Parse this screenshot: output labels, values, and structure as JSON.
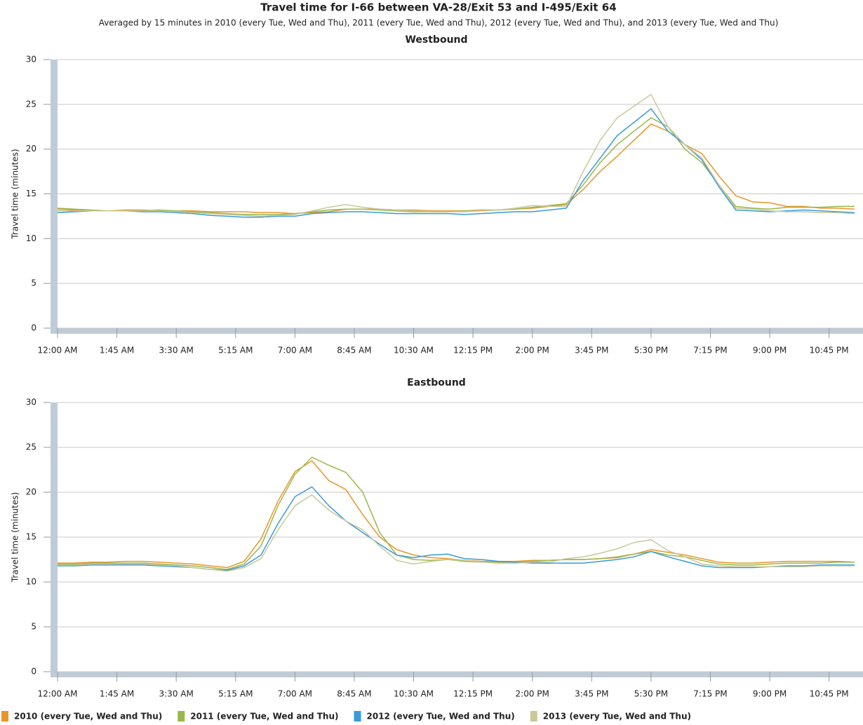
{
  "title": "Travel time for I-66 between VA-28/Exit 53 and I-495/Exit 64",
  "subtitle": "Averaged by 15 minutes in 2010 (every Tue, Wed and Thu), 2011 (every Tue, Wed and Thu), 2012 (every Tue, Wed and Thu), and 2013 (every Tue, Wed and Thu)",
  "chart_data": [
    {
      "type": "line",
      "title": "Westbound",
      "y_label": "Travel time (minutes)",
      "x": [
        0,
        0.5,
        1,
        1.5,
        2,
        2.5,
        3,
        3.5,
        4,
        4.5,
        5,
        5.5,
        6,
        6.5,
        7,
        7.5,
        8,
        8.5,
        9,
        9.5,
        10,
        10.5,
        11,
        11.5,
        12,
        12.5,
        13,
        13.5,
        14,
        14.5,
        15,
        15.5,
        16,
        16.5,
        17,
        17.5,
        18,
        18.5,
        19,
        19.5,
        20,
        20.5,
        21,
        21.5,
        22,
        22.5,
        23,
        23.5
      ],
      "xlim": [
        0,
        23.75
      ],
      "xticks": [
        {
          "value": 0,
          "label": "12:00 AM"
        },
        {
          "value": 1.75,
          "label": "1:45 AM"
        },
        {
          "value": 3.5,
          "label": "3:30 AM"
        },
        {
          "value": 5.25,
          "label": "5:15 AM"
        },
        {
          "value": 7,
          "label": "7:00 AM"
        },
        {
          "value": 8.75,
          "label": "8:45 AM"
        },
        {
          "value": 10.5,
          "label": "10:30 AM"
        },
        {
          "value": 12.25,
          "label": "12:15 PM"
        },
        {
          "value": 14,
          "label": "2:00 PM"
        },
        {
          "value": 15.75,
          "label": "3:45 PM"
        },
        {
          "value": 17.5,
          "label": "5:30 PM"
        },
        {
          "value": 19.25,
          "label": "7:15 PM"
        },
        {
          "value": 21,
          "label": "9:00 PM"
        },
        {
          "value": 22.75,
          "label": "10:45 PM"
        }
      ],
      "ylim": [
        0,
        30
      ],
      "yticks": [
        0,
        5,
        10,
        15,
        20,
        25,
        30
      ],
      "grid": true,
      "series": [
        {
          "name": "2010 (every Tue, Wed and Thu)",
          "color": "#e8962a",
          "values": [
            13.3,
            13.2,
            13.1,
            13.1,
            13.2,
            13.2,
            13.1,
            13.1,
            13.1,
            13.0,
            13.0,
            13.0,
            12.9,
            12.9,
            12.8,
            12.9,
            13.0,
            13.3,
            13.3,
            13.3,
            13.2,
            13.2,
            13.1,
            13.1,
            13.1,
            13.2,
            13.2,
            13.3,
            13.4,
            13.6,
            13.8,
            15.5,
            17.5,
            19.2,
            21.0,
            22.8,
            22.0,
            20.5,
            19.5,
            17.0,
            14.8,
            14.1,
            14.0,
            13.6,
            13.6,
            13.4,
            13.4,
            13.3
          ]
        },
        {
          "name": "2011 (every Tue, Wed and Thu)",
          "color": "#9ab84a",
          "values": [
            13.4,
            13.3,
            13.2,
            13.1,
            13.1,
            13.1,
            13.2,
            13.1,
            13.0,
            12.9,
            12.8,
            12.7,
            12.7,
            12.7,
            12.8,
            13.0,
            13.2,
            13.3,
            13.3,
            13.2,
            13.1,
            13.0,
            13.0,
            13.0,
            13.1,
            13.1,
            13.2,
            13.3,
            13.5,
            13.7,
            13.9,
            16.0,
            18.5,
            20.5,
            22.0,
            23.5,
            22.5,
            20.0,
            18.5,
            16.0,
            13.6,
            13.4,
            13.3,
            13.5,
            13.5,
            13.5,
            13.6,
            13.6
          ]
        },
        {
          "name": "2012 (every Tue, Wed and Thu)",
          "color": "#3a9ad9",
          "values": [
            12.9,
            13.0,
            13.1,
            13.1,
            13.1,
            13.0,
            13.0,
            12.9,
            12.8,
            12.6,
            12.5,
            12.4,
            12.4,
            12.5,
            12.5,
            12.8,
            12.9,
            13.0,
            13.0,
            12.9,
            12.8,
            12.8,
            12.8,
            12.8,
            12.7,
            12.8,
            12.9,
            13.0,
            13.0,
            13.2,
            13.4,
            16.5,
            19.0,
            21.5,
            23.0,
            24.5,
            22.0,
            20.5,
            18.8,
            15.8,
            13.2,
            13.1,
            13.0,
            13.1,
            13.2,
            13.1,
            13.0,
            12.9
          ]
        },
        {
          "name": "2013 (every Tue, Wed and Thu)",
          "color": "#c8c89a",
          "values": [
            13.1,
            13.1,
            13.1,
            13.1,
            13.1,
            13.1,
            13.1,
            13.0,
            12.9,
            12.8,
            12.7,
            12.6,
            12.5,
            12.6,
            12.7,
            13.1,
            13.5,
            13.8,
            13.5,
            13.3,
            13.2,
            13.1,
            13.0,
            13.0,
            13.0,
            13.1,
            13.2,
            13.4,
            13.7,
            13.6,
            13.6,
            17.5,
            21.0,
            23.5,
            24.8,
            26.1,
            22.5,
            20.5,
            19.0,
            16.0,
            13.4,
            13.3,
            13.1,
            13.0,
            13.0,
            12.9,
            12.9,
            12.8
          ]
        }
      ]
    },
    {
      "type": "line",
      "title": "Eastbound",
      "y_label": "Travel time (minutes)",
      "x": [
        0,
        0.5,
        1,
        1.5,
        2,
        2.5,
        3,
        3.5,
        4,
        4.5,
        5,
        5.5,
        6,
        6.5,
        7,
        7.5,
        8,
        8.5,
        9,
        9.5,
        10,
        10.5,
        11,
        11.5,
        12,
        12.5,
        13,
        13.5,
        14,
        14.5,
        15,
        15.5,
        16,
        16.5,
        17,
        17.5,
        18,
        18.5,
        19,
        19.5,
        20,
        20.5,
        21,
        21.5,
        22,
        22.5,
        23,
        23.5
      ],
      "xlim": [
        0,
        23.75
      ],
      "xticks": [
        {
          "value": 0,
          "label": "12:00 AM"
        },
        {
          "value": 1.75,
          "label": "1:45 AM"
        },
        {
          "value": 3.5,
          "label": "3:30 AM"
        },
        {
          "value": 5.25,
          "label": "5:15 AM"
        },
        {
          "value": 7,
          "label": "7:00 AM"
        },
        {
          "value": 8.75,
          "label": "8:45 AM"
        },
        {
          "value": 10.5,
          "label": "10:30 AM"
        },
        {
          "value": 12.25,
          "label": "12:15 PM"
        },
        {
          "value": 14,
          "label": "2:00 PM"
        },
        {
          "value": 15.75,
          "label": "3:45 PM"
        },
        {
          "value": 17.5,
          "label": "5:30 PM"
        },
        {
          "value": 19.25,
          "label": "7:15 PM"
        },
        {
          "value": 21,
          "label": "9:00 PM"
        },
        {
          "value": 22.75,
          "label": "10:45 PM"
        }
      ],
      "ylim": [
        0,
        30
      ],
      "yticks": [
        0,
        5,
        10,
        15,
        20,
        25,
        30
      ],
      "grid": true,
      "series": [
        {
          "color": "#e8962a",
          "values": [
            12.1,
            12.1,
            12.2,
            12.2,
            12.3,
            12.3,
            12.2,
            12.1,
            12.0,
            11.8,
            11.6,
            12.3,
            14.8,
            19.0,
            22.3,
            23.5,
            21.3,
            20.3,
            17.5,
            15.0,
            13.6,
            13.0,
            12.7,
            12.6,
            12.4,
            12.3,
            12.3,
            12.3,
            12.4,
            12.4,
            12.5,
            12.5,
            12.6,
            12.7,
            13.1,
            13.6,
            13.3,
            13.0,
            12.6,
            12.2,
            12.1,
            12.1,
            12.2,
            12.3,
            12.3,
            12.3,
            12.3,
            12.2
          ]
        },
        {
          "color": "#9ab84a",
          "values": [
            12.0,
            12.0,
            12.1,
            12.1,
            12.1,
            12.1,
            12.0,
            11.9,
            11.8,
            11.6,
            11.4,
            12.0,
            14.0,
            18.5,
            22.0,
            23.9,
            23.0,
            22.2,
            20.0,
            15.5,
            13.0,
            12.5,
            12.4,
            12.5,
            12.3,
            12.2,
            12.2,
            12.2,
            12.3,
            12.4,
            12.5,
            12.5,
            12.6,
            12.8,
            13.1,
            13.4,
            13.0,
            12.8,
            12.4,
            12.0,
            11.9,
            11.9,
            12.0,
            12.1,
            12.1,
            12.1,
            12.2,
            12.2
          ]
        },
        {
          "color": "#3a9ad9",
          "values": [
            11.8,
            11.8,
            11.9,
            11.9,
            11.9,
            11.9,
            11.8,
            11.7,
            11.6,
            11.4,
            11.3,
            11.8,
            13.0,
            16.5,
            19.5,
            20.6,
            18.5,
            16.8,
            15.5,
            14.2,
            13.0,
            12.7,
            13.0,
            13.1,
            12.6,
            12.5,
            12.3,
            12.2,
            12.1,
            12.1,
            12.1,
            12.1,
            12.3,
            12.5,
            12.8,
            13.4,
            12.8,
            12.3,
            11.8,
            11.6,
            11.6,
            11.6,
            11.7,
            11.8,
            11.8,
            11.9,
            11.9,
            11.9
          ]
        },
        {
          "color": "#c8c89a",
          "values": [
            11.9,
            11.9,
            12.0,
            12.0,
            12.0,
            12.0,
            11.9,
            11.8,
            11.6,
            11.4,
            11.2,
            11.6,
            12.6,
            15.8,
            18.5,
            19.7,
            18.0,
            16.8,
            15.8,
            14.0,
            12.4,
            12.0,
            12.3,
            12.5,
            12.4,
            12.2,
            12.1,
            12.1,
            12.2,
            12.2,
            12.6,
            12.8,
            13.2,
            13.7,
            14.4,
            14.7,
            13.5,
            12.8,
            12.0,
            11.8,
            11.7,
            11.7,
            11.7,
            11.7,
            11.7,
            11.8,
            11.8,
            11.8
          ]
        }
      ]
    }
  ]
}
